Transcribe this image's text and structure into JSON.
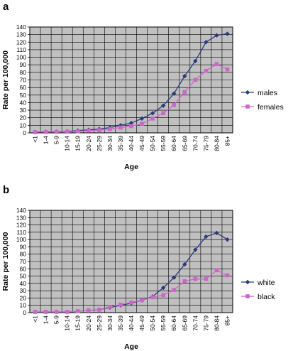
{
  "chart_data": [
    {
      "type": "line",
      "panel_label": "a",
      "categories": [
        "<1",
        "1-4",
        "5-9",
        "10-14",
        "15-19",
        "20-24",
        "25-29",
        "30-34",
        "35-39",
        "40-44",
        "45-49",
        "50-54",
        "55-59",
        "60-64",
        "65-69",
        "70-74",
        "75-79",
        "80-84",
        "85+"
      ],
      "series": [
        {
          "name": "males",
          "values": [
            1,
            1.5,
            1.5,
            2,
            3,
            4,
            5,
            7,
            10,
            13,
            19,
            26,
            36,
            52,
            75,
            95,
            120,
            129,
            131
          ],
          "color": "#2b3a7a",
          "marker": "diamond"
        },
        {
          "name": "females",
          "values": [
            1,
            1.2,
            1.3,
            1.5,
            2,
            3,
            3.5,
            5,
            7,
            9,
            12,
            19,
            26,
            37,
            54,
            70,
            82,
            91,
            84
          ],
          "color": "#cc66cc",
          "marker": "square"
        }
      ],
      "xlabel": "Age",
      "ylabel": "Rate per 100,000",
      "ylim": [
        0,
        140
      ],
      "yticks": [
        0,
        10,
        20,
        30,
        40,
        50,
        60,
        70,
        80,
        90,
        100,
        110,
        120,
        130,
        140
      ],
      "grid": true,
      "legend": "right"
    },
    {
      "type": "line",
      "panel_label": "b",
      "categories": [
        "<1",
        "1-4",
        "5-9",
        "10-14",
        "15-19",
        "20-24",
        "25-29",
        "30-34",
        "35-39",
        "40-44",
        "45-49",
        "50-54",
        "55-59",
        "60-64",
        "65-69",
        "70-74",
        "75-79",
        "80-84",
        "85+"
      ],
      "series": [
        {
          "name": "white",
          "values": [
            1,
            1,
            1,
            1,
            2,
            3,
            4,
            7,
            10,
            13,
            17,
            22,
            34,
            48,
            66,
            86,
            104,
            109,
            100
          ],
          "color": "#2b3a7a",
          "marker": "diamond"
        },
        {
          "name": "black",
          "values": [
            1,
            1,
            1,
            1,
            2,
            3,
            4,
            8,
            11,
            14,
            17,
            21,
            24,
            31,
            43,
            46,
            46,
            58,
            51
          ],
          "color": "#cc66cc",
          "marker": "square"
        }
      ],
      "xlabel": "Age",
      "ylabel": "Rate per 100,000",
      "ylim": [
        0,
        140
      ],
      "yticks": [
        0,
        10,
        20,
        30,
        40,
        50,
        60,
        70,
        80,
        90,
        100,
        110,
        120,
        130,
        140
      ],
      "grid": true,
      "legend": "right"
    }
  ]
}
